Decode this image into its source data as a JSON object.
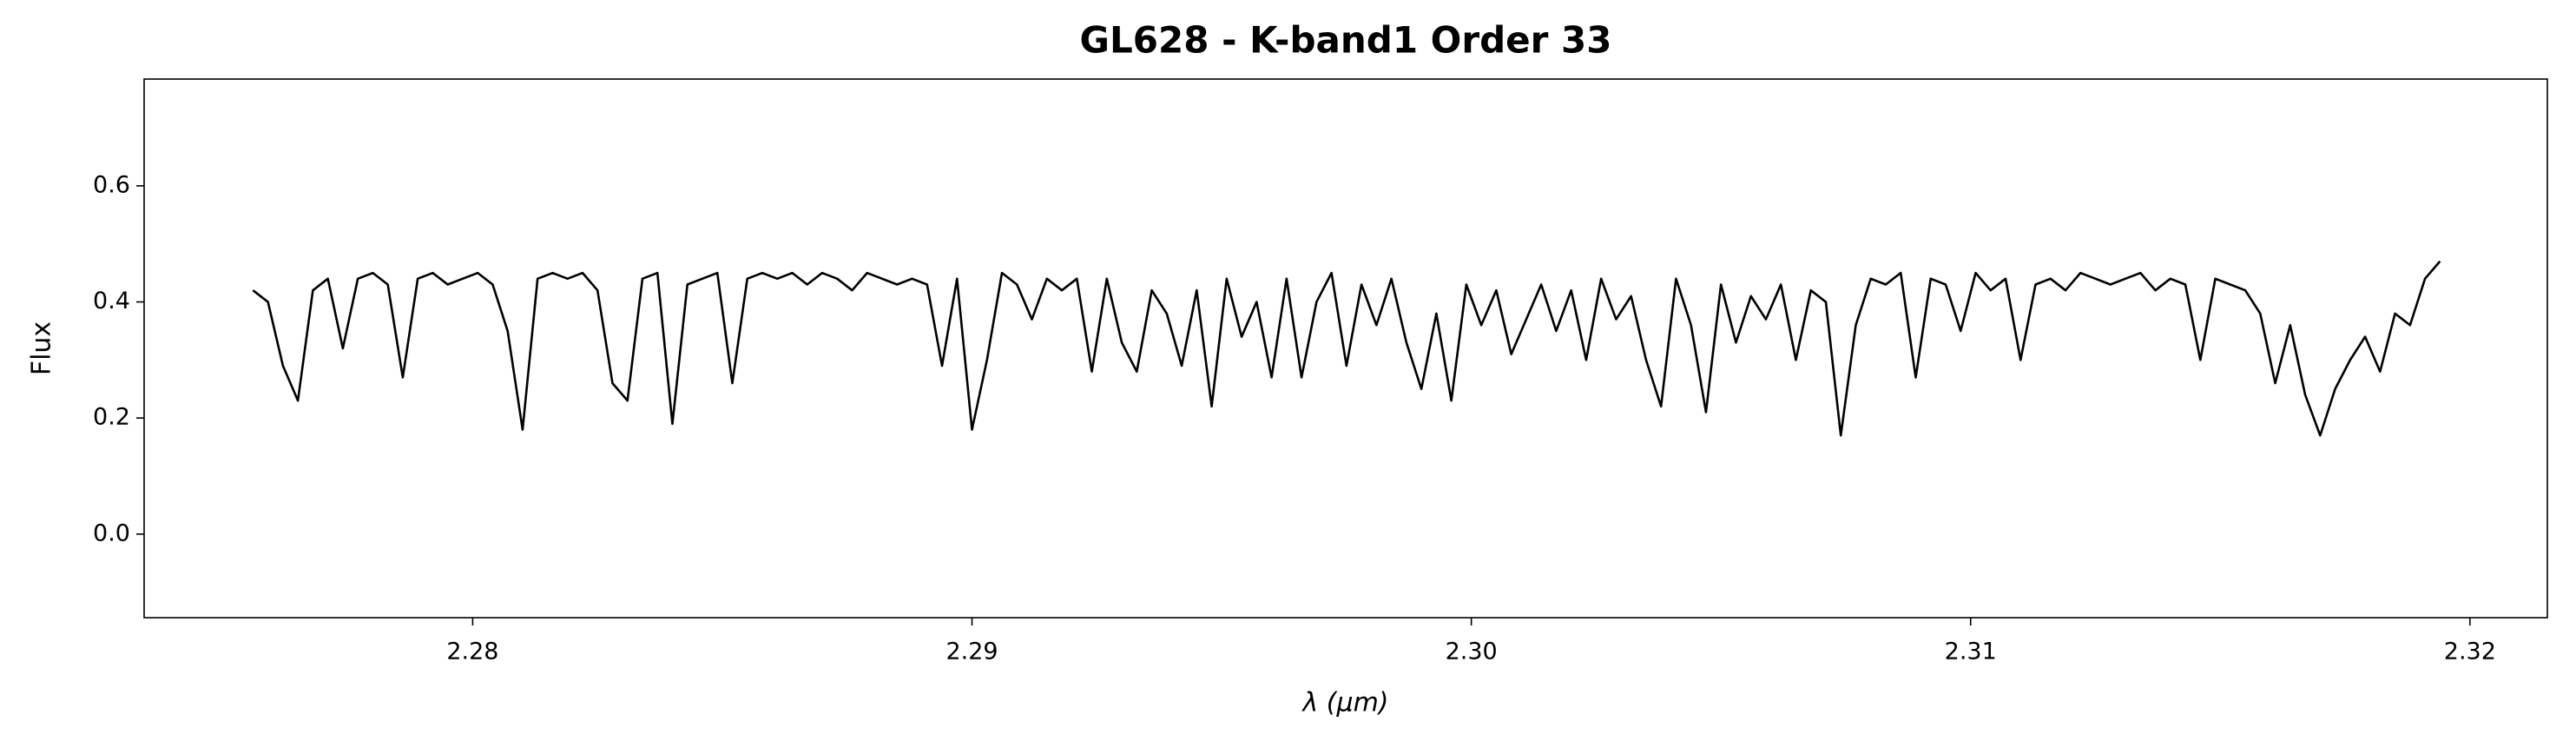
{
  "chart_data": {
    "type": "line",
    "title": "GL628 - K-band1 Order 33",
    "xlabel": "λ (μm)",
    "ylabel": "Flux",
    "color": "#000000",
    "xlim": [
      2.27342,
      2.32155
    ],
    "ylim": [
      -0.144,
      0.784
    ],
    "xticks": [
      2.28,
      2.29,
      {
        "value": 2.3,
        "label": "2.30"
      },
      2.31,
      2.32
    ],
    "yticks": [
      {
        "value": 0,
        "label": "0.0"
      },
      0.2,
      0.4,
      0.6
    ],
    "x": [
      2.2756,
      2.2759,
      2.2762,
      2.2765,
      2.2768,
      2.2771,
      2.2774,
      2.2777,
      2.278,
      2.2783,
      2.2786,
      2.2789,
      2.2792,
      2.2795,
      2.2798,
      2.2801,
      2.2804,
      2.2807,
      2.281,
      2.2813,
      2.2816,
      2.2819,
      2.2822,
      2.2825,
      2.2828,
      2.2831,
      2.2834,
      2.2837,
      2.284,
      2.2843,
      2.2846,
      2.2849,
      2.2852,
      2.2855,
      2.2858,
      2.2861,
      2.2864,
      2.2867,
      2.287,
      2.2873,
      2.2876,
      2.2879,
      2.2882,
      2.2885,
      2.2888,
      2.2891,
      2.2894,
      2.2897,
      2.29,
      2.2903,
      2.2906,
      2.2909,
      2.2912,
      2.2915,
      2.2918,
      2.2921,
      2.2924,
      2.2927,
      2.293,
      2.2933,
      2.2936,
      2.2939,
      2.2942,
      2.2945,
      2.2948,
      2.2951,
      2.2954,
      2.2957,
      2.296,
      2.2963,
      2.2966,
      2.2969,
      2.2972,
      2.2975,
      2.2978,
      2.2981,
      2.2984,
      2.2987,
      2.299,
      2.2993,
      2.2996,
      2.2999,
      2.3002,
      2.3005,
      2.3008,
      2.3011,
      2.3014,
      2.3017,
      2.302,
      2.3023,
      2.3026,
      2.3029,
      2.3032,
      2.3035,
      2.3038,
      2.3041,
      2.3044,
      2.3047,
      2.305,
      2.3053,
      2.3056,
      2.3059,
      2.3062,
      2.3065,
      2.3068,
      2.3071,
      2.3074,
      2.3077,
      2.308,
      2.3083,
      2.3086,
      2.3089,
      2.3092,
      2.3095,
      2.3098,
      2.3101,
      2.3104,
      2.3107,
      2.311,
      2.3113,
      2.3116,
      2.3119,
      2.3122,
      2.3125,
      2.3128,
      2.3131,
      2.3134,
      2.3137,
      2.314,
      2.3143,
      2.3146,
      2.3149,
      2.3152,
      2.3155,
      2.3158,
      2.3161,
      2.3164,
      2.3167,
      2.317,
      2.3173,
      2.3176,
      2.3179,
      2.3182,
      2.3185,
      2.3188,
      2.3191,
      2.3194
    ],
    "values": [
      0.42,
      0.4,
      0.29,
      0.23,
      0.42,
      0.44,
      0.32,
      0.44,
      0.45,
      0.43,
      0.27,
      0.44,
      0.45,
      0.43,
      0.44,
      0.45,
      0.43,
      0.35,
      0.18,
      0.44,
      0.45,
      0.44,
      0.45,
      0.42,
      0.26,
      0.23,
      0.44,
      0.45,
      0.19,
      0.43,
      0.44,
      0.45,
      0.26,
      0.44,
      0.45,
      0.44,
      0.45,
      0.43,
      0.45,
      0.44,
      0.42,
      0.45,
      0.44,
      0.43,
      0.44,
      0.43,
      0.29,
      0.44,
      0.18,
      0.3,
      0.45,
      0.43,
      0.37,
      0.44,
      0.42,
      0.44,
      0.28,
      0.44,
      0.33,
      0.28,
      0.42,
      0.38,
      0.29,
      0.42,
      0.22,
      0.44,
      0.34,
      0.4,
      0.27,
      0.44,
      0.27,
      0.4,
      0.45,
      0.29,
      0.43,
      0.36,
      0.44,
      0.33,
      0.25,
      0.38,
      0.23,
      0.43,
      0.36,
      0.42,
      0.31,
      0.37,
      0.43,
      0.35,
      0.42,
      0.3,
      0.44,
      0.37,
      0.41,
      0.3,
      0.22,
      0.44,
      0.36,
      0.21,
      0.43,
      0.33,
      0.41,
      0.37,
      0.43,
      0.3,
      0.42,
      0.4,
      0.17,
      0.36,
      0.44,
      0.43,
      0.45,
      0.27,
      0.44,
      0.43,
      0.35,
      0.45,
      0.42,
      0.44,
      0.3,
      0.43,
      0.44,
      0.42,
      0.45,
      0.44,
      0.43,
      0.44,
      0.45,
      0.42,
      0.44,
      0.43,
      0.3,
      0.44,
      0.43,
      0.42,
      0.38,
      0.26,
      0.36,
      0.24,
      0.17,
      0.25,
      0.3,
      0.34,
      0.28,
      0.38,
      0.36,
      0.44,
      0.47
    ]
  }
}
